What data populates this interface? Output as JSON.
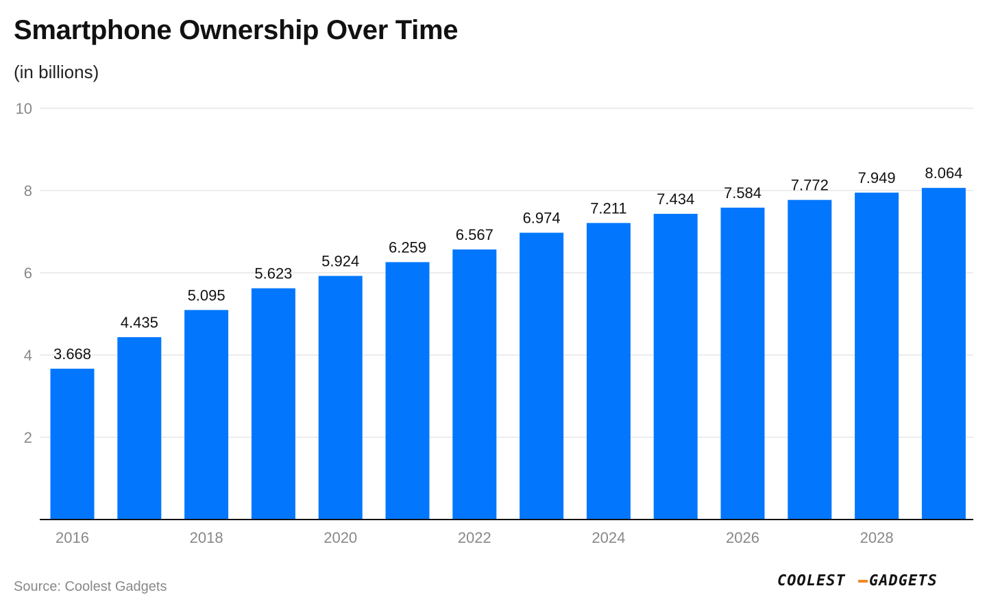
{
  "title": "Smartphone Ownership Over Time",
  "subtitle": "(in billions)",
  "source": "Source: Coolest Gadgets",
  "logo_text": "COOLEST-GADGETS",
  "colors": {
    "bar": "#0277fe",
    "grid": "#e5e5e5",
    "axis": "#111111",
    "tick": "#888888",
    "label": "#111111",
    "logo_dash": "#f08a24"
  },
  "chart_data": {
    "type": "bar",
    "title": "Smartphone Ownership Over Time",
    "subtitle": "(in billions)",
    "categories": [
      2016,
      2017,
      2018,
      2019,
      2020,
      2021,
      2022,
      2023,
      2024,
      2025,
      2026,
      2027,
      2028,
      2029
    ],
    "values": [
      3.668,
      4.435,
      5.095,
      5.623,
      5.924,
      6.259,
      6.567,
      6.974,
      7.211,
      7.434,
      7.584,
      7.772,
      7.949,
      8.064
    ],
    "value_labels": [
      "3.668",
      "4.435",
      "5.095",
      "5.623",
      "5.924",
      "6.259",
      "6.567",
      "6.974",
      "7.211",
      "7.434",
      "7.584",
      "7.772",
      "7.949",
      "8.064"
    ],
    "x_tick_labels": [
      "2016",
      "2018",
      "2020",
      "2022",
      "2024",
      "2026",
      "2028"
    ],
    "y_tick_labels": [
      "2",
      "4",
      "6",
      "8",
      "10"
    ],
    "y_ticks": [
      2,
      4,
      6,
      8,
      10
    ],
    "ylim": [
      0,
      10
    ],
    "xlabel": "",
    "ylabel": "",
    "grid": true,
    "legend": "none"
  }
}
